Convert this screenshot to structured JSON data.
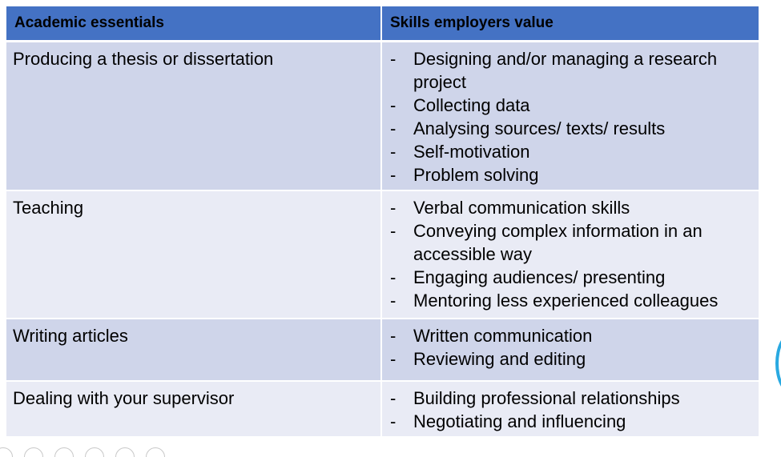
{
  "table": {
    "headers": [
      "Academic essentials",
      "Skills employers value"
    ],
    "rows": [
      {
        "essential": "Producing a thesis or dissertation",
        "skills": [
          "Designing and/or managing a research project",
          "Collecting data",
          "Analysing sources/ texts/ results",
          "Self-motivation",
          "Problem solving"
        ]
      },
      {
        "essential": "Teaching",
        "skills": [
          "Verbal communication skills",
          "Conveying complex information in an accessible way",
          "Engaging audiences/ presenting",
          "Mentoring less experienced colleagues"
        ]
      },
      {
        "essential": "Writing articles",
        "skills": [
          "Written communication",
          "Reviewing and editing"
        ]
      },
      {
        "essential": "Dealing with your supervisor",
        "skills": [
          "Building professional relationships",
          "Negotiating and influencing"
        ]
      }
    ]
  },
  "bullet_char": "-",
  "colors": {
    "header_bg": "#4472c4",
    "row_dark": "#cfd5ea",
    "row_light": "#e9ebf5",
    "accent_circle": "#29a9e1"
  }
}
